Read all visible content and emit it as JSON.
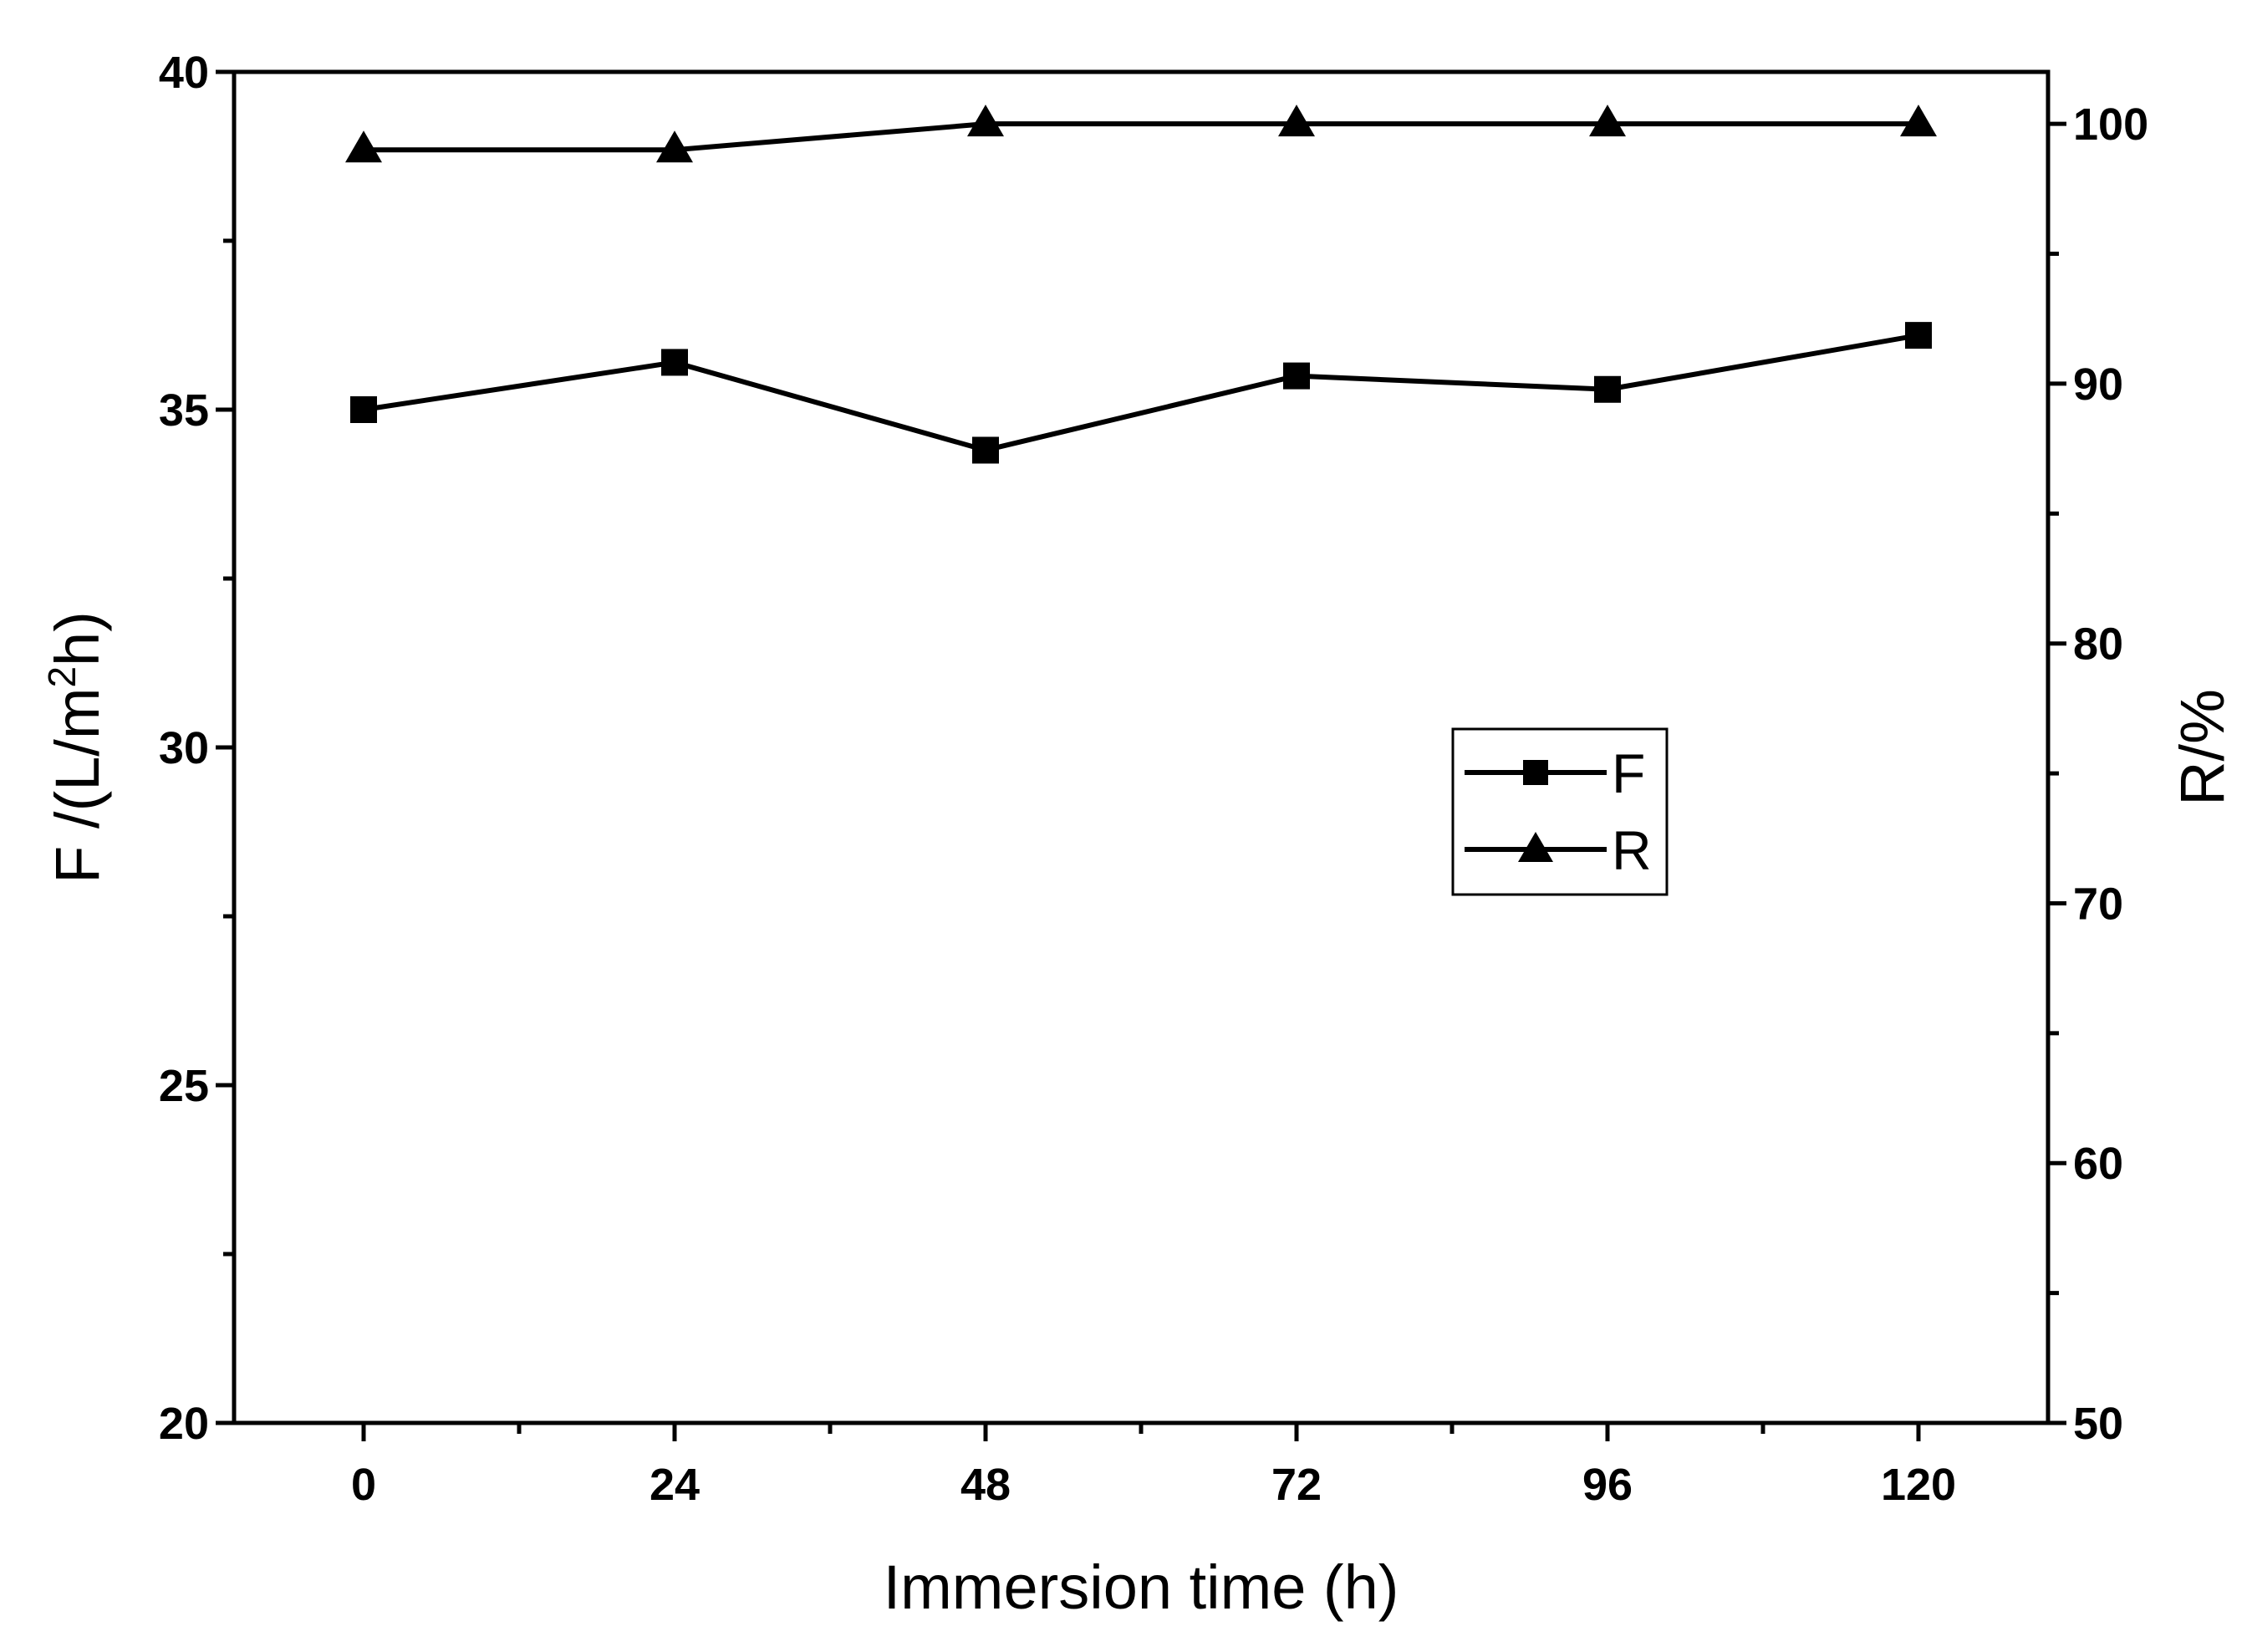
{
  "chart_data": {
    "type": "line",
    "title": "",
    "xlabel": "Immersion time (h)",
    "ylabel_left": {
      "prefix": "F /(L/m",
      "superscript": "2",
      "suffix": "h)"
    },
    "ylabel_right": "R/%",
    "x": [
      0,
      24,
      48,
      72,
      96,
      120
    ],
    "xlim": [
      -10,
      130
    ],
    "x_major_ticks": [
      0,
      24,
      48,
      72,
      96,
      120
    ],
    "x_tick_labels": [
      "0",
      "24",
      "48",
      "72",
      "96",
      "120"
    ],
    "x_minor_ticks": [
      12,
      36,
      60,
      84,
      108
    ],
    "ylim_left": [
      20,
      40
    ],
    "y_left_major_ticks": [
      20,
      25,
      30,
      35,
      40
    ],
    "y_left_tick_labels": [
      "20",
      "25",
      "30",
      "35",
      "40"
    ],
    "y_left_minor_ticks": [
      22.5,
      27.5,
      32.5,
      37.5
    ],
    "ylim_right": [
      50,
      102
    ],
    "y_right_major_ticks": [
      50,
      60,
      70,
      80,
      90,
      100
    ],
    "y_right_tick_labels": [
      "50",
      "60",
      "70",
      "80",
      "90",
      "100"
    ],
    "y_right_minor_ticks": [
      55,
      65,
      75,
      85,
      95
    ],
    "series": [
      {
        "name": "F",
        "axis": "left",
        "marker": "square",
        "values": [
          35.0,
          35.7,
          34.4,
          35.5,
          35.3,
          36.1
        ]
      },
      {
        "name": "R",
        "axis": "right",
        "marker": "triangle",
        "values": [
          99.0,
          99.0,
          100.0,
          100.0,
          100.0,
          100.0
        ]
      }
    ],
    "legend": {
      "position": "center-right",
      "entries": [
        "F",
        "R"
      ]
    },
    "grid": false,
    "colors": {
      "line": "#000000",
      "background": "#ffffff"
    }
  }
}
